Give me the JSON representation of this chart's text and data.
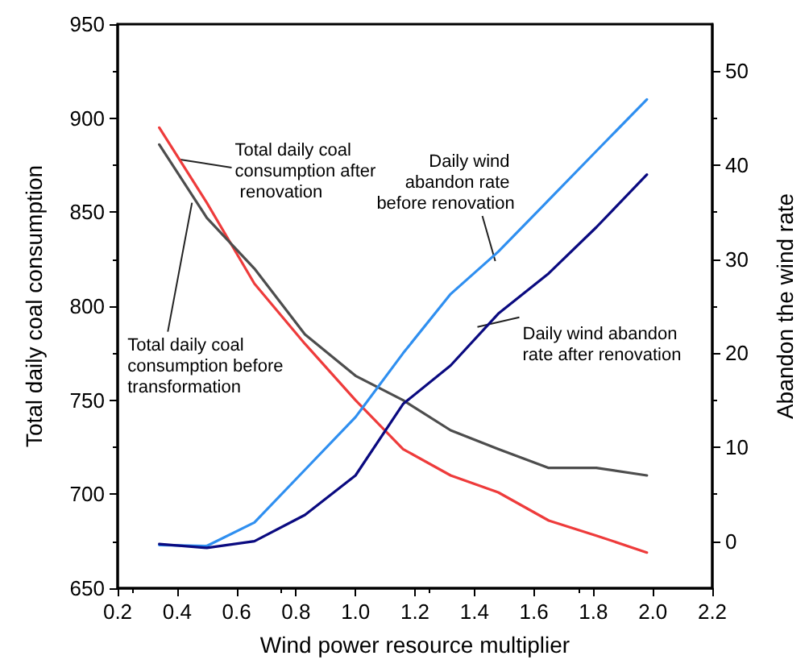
{
  "chart_data": {
    "type": "line",
    "xlabel": "Wind power resource multiplier",
    "ylabel": "Total daily coal consumption",
    "y2label": "Abandon the wind rate",
    "x": [
      0.34,
      0.5,
      0.66,
      0.83,
      1.0,
      1.16,
      1.32,
      1.48,
      1.65,
      1.81,
      1.98
    ],
    "series": [
      {
        "color": "#ee3b3b",
        "values": [
          895,
          855,
          812,
          780,
          750,
          724,
          710,
          701,
          686,
          678,
          669
        ]
      },
      {
        "color": "#4d4d4d",
        "values": [
          886,
          847,
          820,
          785,
          763,
          750,
          734,
          724,
          714,
          714,
          710
        ]
      },
      {
        "color": "#2f8ff0",
        "axis": "y2",
        "values": [
          -0.4,
          -0.5,
          2,
          7.6,
          13.2,
          20,
          26.3,
          30.8,
          36.3,
          41.5,
          47
        ]
      },
      {
        "color": "#0a0a80",
        "axis": "y2",
        "values": [
          -0.3,
          -0.7,
          0,
          2.8,
          7,
          14.6,
          18.7,
          24.2,
          28.5,
          33.4,
          39
        ]
      }
    ],
    "annotations": [
      {
        "text": "Total daily coal consumption after renovation",
        "x": 0.41,
        "y": 878
      },
      {
        "text": "Total daily coal consumption before transformation",
        "x": 0.45,
        "y": 855
      },
      {
        "text": "Daily wind abandon rate before renovation",
        "x": 1.47,
        "y": 824
      },
      {
        "text": "Daily wind abandon rate after renovation",
        "x": 1.41,
        "y": 789
      }
    ],
    "xlim": [
      0.2,
      2.2
    ],
    "xticks": [
      {
        "value": 0.2,
        "label": "0.2"
      },
      {
        "value": 0.4,
        "label": "0.4"
      },
      {
        "value": 0.6,
        "label": "0.6"
      },
      {
        "value": 0.8,
        "label": "0.8"
      },
      {
        "value": 1.0,
        "label": "1.0"
      },
      {
        "value": 1.2,
        "label": "1.2"
      },
      {
        "value": 1.4,
        "label": "1.4"
      },
      {
        "value": 1.6,
        "label": "1.6"
      },
      {
        "value": 1.8,
        "label": "1.8"
      },
      {
        "value": 2.0,
        "label": "2.0"
      },
      {
        "value": 2.2,
        "label": "2.2"
      }
    ],
    "ylim": [
      650,
      950
    ],
    "yticks": [
      650,
      700,
      750,
      800,
      850,
      900,
      950
    ],
    "y2lim": [
      -5,
      55
    ],
    "y2ticks": [
      0,
      10,
      20,
      30,
      40,
      50
    ],
    "grid": false,
    "marker": "none",
    "line_style": "solid"
  }
}
